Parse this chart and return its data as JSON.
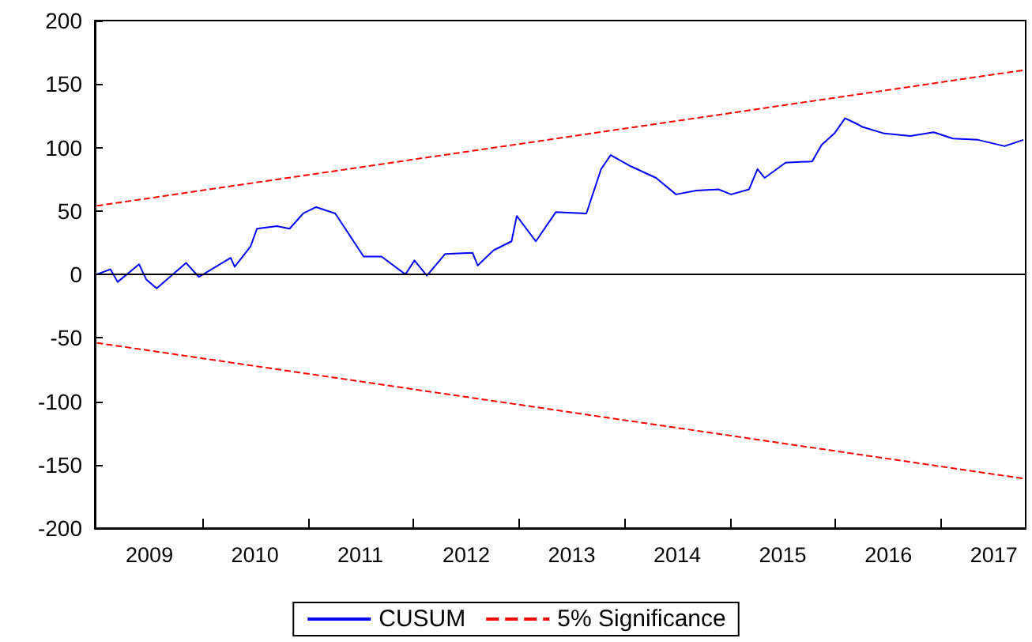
{
  "chart_data": {
    "type": "line",
    "xlim": [
      "2008-12-25",
      "2017-10-20"
    ],
    "xticks": [
      {
        "value": "2009-07-02",
        "label": "2009"
      },
      {
        "value": "2010-01-01",
        "label": null
      },
      {
        "value": "2010-07-02",
        "label": "2010"
      },
      {
        "value": "2011-01-01",
        "label": null
      },
      {
        "value": "2011-07-02",
        "label": "2011"
      },
      {
        "value": "2012-01-01",
        "label": null
      },
      {
        "value": "2012-07-02",
        "label": "2012"
      },
      {
        "value": "2013-01-01",
        "label": null
      },
      {
        "value": "2013-07-02",
        "label": "2013"
      },
      {
        "value": "2014-01-01",
        "label": null
      },
      {
        "value": "2014-07-02",
        "label": "2014"
      },
      {
        "value": "2015-01-01",
        "label": null
      },
      {
        "value": "2015-07-02",
        "label": "2015"
      },
      {
        "value": "2016-01-01",
        "label": null
      },
      {
        "value": "2016-07-02",
        "label": "2016"
      },
      {
        "value": "2017-01-01",
        "label": null
      },
      {
        "value": "2017-07-02",
        "label": "2017"
      }
    ],
    "ylim": [
      -200,
      200
    ],
    "yticks": [
      -200,
      -150,
      -100,
      -50,
      0,
      50,
      100,
      150,
      200
    ],
    "grid": false,
    "legend": "bottom",
    "marker": "none",
    "ref_lines": [
      {
        "axis": "y",
        "value": 0,
        "label": null,
        "color": "#000000"
      }
    ],
    "series": [
      {
        "name": "CUSUM",
        "color": "#0000ff",
        "line_style": "solid",
        "x": [
          "2009-01-01",
          "2009-02-17",
          "2009-03-14",
          "2009-05-27",
          "2009-06-21",
          "2009-07-27",
          "2009-11-06",
          "2009-12-20",
          "2010-04-09",
          "2010-04-23",
          "2010-06-17",
          "2010-07-09",
          "2010-09-16",
          "2010-10-30",
          "2010-12-16",
          "2011-01-30",
          "2011-04-06",
          "2011-05-31",
          "2011-07-13",
          "2011-09-13",
          "2011-12-05",
          "2012-01-05",
          "2012-02-17",
          "2012-04-20",
          "2012-07-24",
          "2012-08-11",
          "2012-10-05",
          "2012-12-06",
          "2012-12-24",
          "2013-02-28",
          "2013-05-08",
          "2013-08-22",
          "2013-10-12",
          "2013-11-14",
          "2014-01-15",
          "2014-04-20",
          "2014-06-28",
          "2014-09-06",
          "2014-11-22",
          "2015-01-05",
          "2015-03-08",
          "2015-04-06",
          "2015-05-01",
          "2015-07-12",
          "2015-10-12",
          "2015-11-14",
          "2015-12-28",
          "2016-02-03",
          "2016-03-11",
          "2016-04-05",
          "2016-06-18",
          "2016-09-16",
          "2016-12-06",
          "2017-02-10",
          "2017-05-08",
          "2017-08-08",
          "2017-10-12"
        ],
        "values": [
          0,
          4,
          -6,
          8,
          -4,
          -11,
          9,
          -2,
          13,
          6,
          22,
          36,
          38,
          36,
          48,
          53,
          48,
          29,
          14,
          14,
          0,
          11,
          -1,
          16,
          17,
          7,
          19,
          26,
          46,
          26,
          49,
          48,
          83,
          94,
          86,
          76,
          63,
          66,
          67,
          63,
          67,
          83,
          76,
          88,
          89,
          102,
          111,
          123,
          119,
          116,
          111,
          109,
          112,
          107,
          106,
          101,
          106
        ]
      },
      {
        "name": "5% Significance",
        "color": "#ff0000",
        "line_style": "dashed",
        "x": [
          "2009-01-01",
          "2017-10-15"
        ],
        "values": [
          54,
          161
        ]
      },
      {
        "color": "#ff0000",
        "line_style": "dashed",
        "x": [
          "2009-01-01",
          "2017-10-15"
        ],
        "values": [
          -54,
          -161
        ]
      }
    ]
  }
}
